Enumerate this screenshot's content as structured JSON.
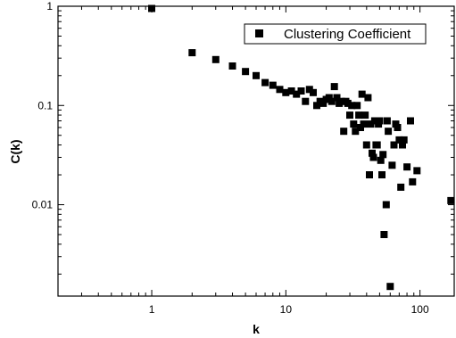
{
  "chart_data": {
    "type": "scatter",
    "xscale": "log",
    "yscale": "log",
    "xlim": [
      0.2,
      180
    ],
    "ylim": [
      0.0012,
      1.0
    ],
    "xlabel": "k",
    "ylabel": "C(k)",
    "x_ticks": [
      {
        "value": 1,
        "label": "1"
      },
      {
        "value": 10,
        "label": "10"
      },
      {
        "value": 100,
        "label": "100"
      }
    ],
    "y_ticks": [
      {
        "value": 0.01,
        "label": "0.01"
      },
      {
        "value": 0.1,
        "label": "0.1"
      },
      {
        "value": 1,
        "label": "1"
      }
    ],
    "grid": false,
    "legend": {
      "position": "top-right",
      "entries": [
        "Clustering Coefficient"
      ]
    },
    "series": [
      {
        "name": "Clustering Coefficient",
        "marker": "square",
        "color": "#000000",
        "points": [
          [
            1.0,
            0.95
          ],
          [
            2.0,
            0.34
          ],
          [
            3.0,
            0.29
          ],
          [
            4.0,
            0.25
          ],
          [
            5.0,
            0.22
          ],
          [
            6.0,
            0.2
          ],
          [
            7.0,
            0.17
          ],
          [
            8.0,
            0.16
          ],
          [
            9.0,
            0.145
          ],
          [
            10.0,
            0.135
          ],
          [
            11.0,
            0.14
          ],
          [
            12.0,
            0.13
          ],
          [
            13.0,
            0.14
          ],
          [
            14.0,
            0.11
          ],
          [
            15.0,
            0.145
          ],
          [
            16.0,
            0.135
          ],
          [
            17.0,
            0.1
          ],
          [
            18.0,
            0.11
          ],
          [
            19.0,
            0.105
          ],
          [
            20.0,
            0.115
          ],
          [
            21.0,
            0.12
          ],
          [
            22.0,
            0.11
          ],
          [
            23.0,
            0.155
          ],
          [
            24.0,
            0.12
          ],
          [
            25.0,
            0.105
          ],
          [
            26.0,
            0.11
          ],
          [
            27.0,
            0.055
          ],
          [
            28.0,
            0.11
          ],
          [
            29.0,
            0.105
          ],
          [
            30.0,
            0.08
          ],
          [
            31.0,
            0.1
          ],
          [
            32.0,
            0.065
          ],
          [
            33.0,
            0.055
          ],
          [
            34.0,
            0.1
          ],
          [
            35.0,
            0.08
          ],
          [
            36.0,
            0.06
          ],
          [
            37.0,
            0.13
          ],
          [
            38.0,
            0.065
          ],
          [
            39.0,
            0.08
          ],
          [
            40.0,
            0.04
          ],
          [
            41.0,
            0.12
          ],
          [
            42.0,
            0.02
          ],
          [
            43.0,
            0.065
          ],
          [
            44.0,
            0.033
          ],
          [
            45.0,
            0.03
          ],
          [
            46.0,
            0.07
          ],
          [
            47.0,
            0.04
          ],
          [
            48.0,
            0.04
          ],
          [
            49.0,
            0.065
          ],
          [
            50.0,
            0.07
          ],
          [
            51.0,
            0.028
          ],
          [
            52.0,
            0.02
          ],
          [
            53.0,
            0.032
          ],
          [
            54.0,
            0.005
          ],
          [
            56.0,
            0.01
          ],
          [
            57.0,
            0.07
          ],
          [
            58.0,
            0.055
          ],
          [
            60.0,
            0.0015
          ],
          [
            62.0,
            0.025
          ],
          [
            64.0,
            0.04
          ],
          [
            66.0,
            0.065
          ],
          [
            68.0,
            0.06
          ],
          [
            70.0,
            0.045
          ],
          [
            72.0,
            0.015
          ],
          [
            74.0,
            0.04
          ],
          [
            76.0,
            0.045
          ],
          [
            80.0,
            0.024
          ],
          [
            85.0,
            0.07
          ],
          [
            88.0,
            0.017
          ],
          [
            95.0,
            0.022
          ],
          [
            170.0,
            0.011
          ]
        ]
      }
    ]
  }
}
